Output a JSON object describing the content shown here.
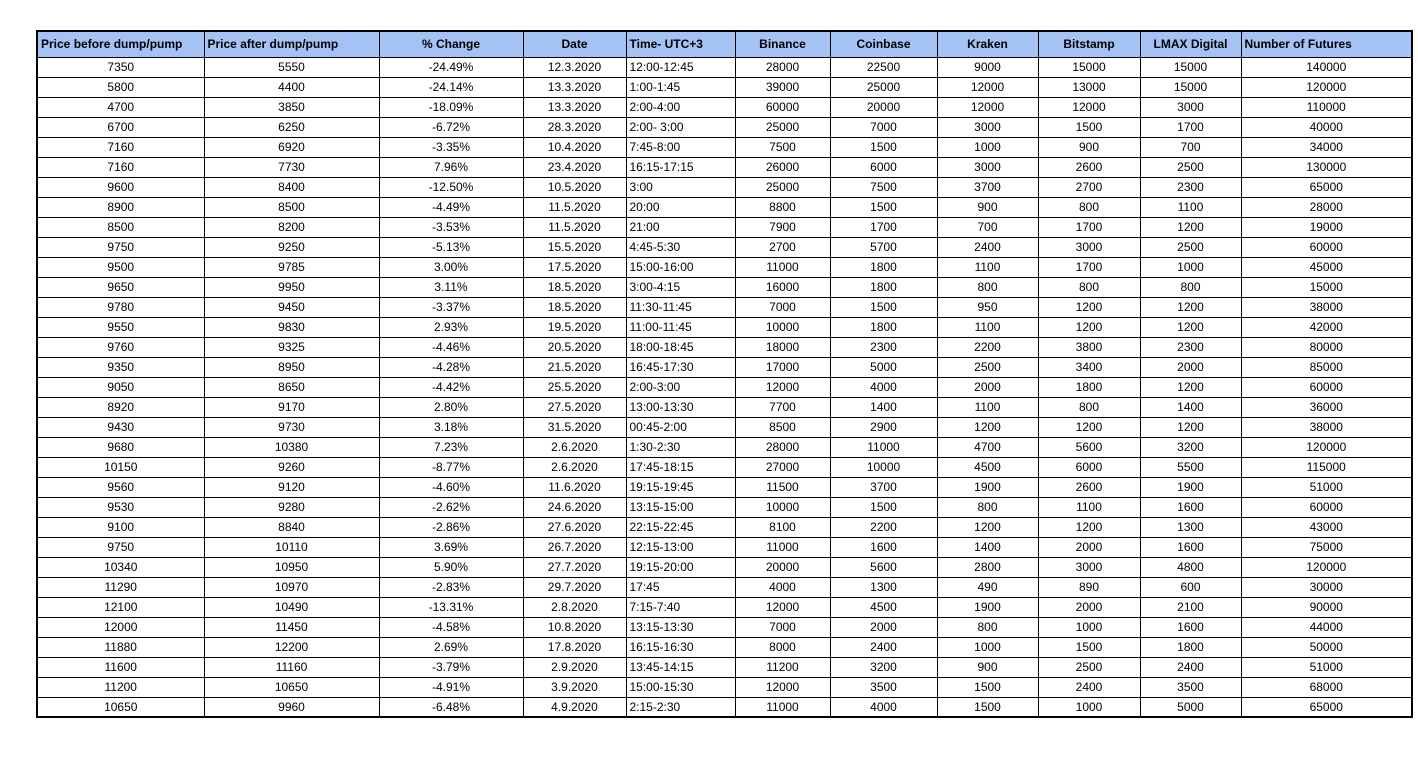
{
  "colors": {
    "header_bg": "#a4c2f4",
    "border": "#000000",
    "text": "#000000",
    "background": "#ffffff"
  },
  "table": {
    "headers": [
      "Price before dump/pump",
      "Price after dump/pump",
      "% Change",
      "Date",
      "Time- UTC+3",
      "Binance",
      "Coinbase",
      "Kraken",
      "Bitstamp",
      "LMAX Digital",
      "Number of Futures"
    ],
    "rows": [
      [
        "7350",
        "5550",
        "-24.49%",
        "12.3.2020",
        "12:00-12:45",
        "28000",
        "22500",
        "9000",
        "15000",
        "15000",
        "140000"
      ],
      [
        "5800",
        "4400",
        "-24.14%",
        "13.3.2020",
        "1:00-1:45",
        "39000",
        "25000",
        "12000",
        "13000",
        "15000",
        "120000"
      ],
      [
        "4700",
        "3850",
        "-18.09%",
        "13.3.2020",
        "2:00-4:00",
        "60000",
        "20000",
        "12000",
        "12000",
        "3000",
        "110000"
      ],
      [
        "6700",
        "6250",
        "-6.72%",
        "28.3.2020",
        "2:00- 3:00",
        "25000",
        "7000",
        "3000",
        "1500",
        "1700",
        "40000"
      ],
      [
        "7160",
        "6920",
        "-3.35%",
        "10.4.2020",
        "7:45-8:00",
        "7500",
        "1500",
        "1000",
        "900",
        "700",
        "34000"
      ],
      [
        "7160",
        "7730",
        "7.96%",
        "23.4.2020",
        "16:15-17:15",
        "26000",
        "6000",
        "3000",
        "2600",
        "2500",
        "130000"
      ],
      [
        "9600",
        "8400",
        "-12.50%",
        "10.5.2020",
        "3:00",
        "25000",
        "7500",
        "3700",
        "2700",
        "2300",
        "65000"
      ],
      [
        "8900",
        "8500",
        "-4.49%",
        "11.5.2020",
        "20:00",
        "8800",
        "1500",
        "900",
        "800",
        "1100",
        "28000"
      ],
      [
        "8500",
        "8200",
        "-3.53%",
        "11.5.2020",
        "21:00",
        "7900",
        "1700",
        "700",
        "1700",
        "1200",
        "19000"
      ],
      [
        "9750",
        "9250",
        "-5.13%",
        "15.5.2020",
        "4:45-5:30",
        "2700",
        "5700",
        "2400",
        "3000",
        "2500",
        "60000"
      ],
      [
        "9500",
        "9785",
        "3.00%",
        "17.5.2020",
        "15:00-16:00",
        "11000",
        "1800",
        "1100",
        "1700",
        "1000",
        "45000"
      ],
      [
        "9650",
        "9950",
        "3.11%",
        "18.5.2020",
        "3:00-4:15",
        "16000",
        "1800",
        "800",
        "800",
        "800",
        "15000"
      ],
      [
        "9780",
        "9450",
        "-3.37%",
        "18.5.2020",
        "11:30-11:45",
        "7000",
        "1500",
        "950",
        "1200",
        "1200",
        "38000"
      ],
      [
        "9550",
        "9830",
        "2.93%",
        "19.5.2020",
        "11:00-11:45",
        "10000",
        "1800",
        "1100",
        "1200",
        "1200",
        "42000"
      ],
      [
        "9760",
        "9325",
        "-4.46%",
        "20.5.2020",
        "18:00-18:45",
        "18000",
        "2300",
        "2200",
        "3800",
        "2300",
        "80000"
      ],
      [
        "9350",
        "8950",
        "-4.28%",
        "21.5.2020",
        "16:45-17:30",
        "17000",
        "5000",
        "2500",
        "3400",
        "2000",
        "85000"
      ],
      [
        "9050",
        "8650",
        "-4.42%",
        "25.5.2020",
        "2:00-3:00",
        "12000",
        "4000",
        "2000",
        "1800",
        "1200",
        "60000"
      ],
      [
        "8920",
        "9170",
        "2.80%",
        "27.5.2020",
        "13:00-13:30",
        "7700",
        "1400",
        "1100",
        "800",
        "1400",
        "36000"
      ],
      [
        "9430",
        "9730",
        "3.18%",
        "31.5.2020",
        "00:45-2:00",
        "8500",
        "2900",
        "1200",
        "1200",
        "1200",
        "38000"
      ],
      [
        "9680",
        "10380",
        "7.23%",
        "2.6.2020",
        "1:30-2:30",
        "28000",
        "11000",
        "4700",
        "5600",
        "3200",
        "120000"
      ],
      [
        "10150",
        "9260",
        "-8.77%",
        "2.6.2020",
        "17:45-18:15",
        "27000",
        "10000",
        "4500",
        "6000",
        "5500",
        "115000"
      ],
      [
        "9560",
        "9120",
        "-4.60%",
        "11.6.2020",
        "19:15-19:45",
        "11500",
        "3700",
        "1900",
        "2600",
        "1900",
        "51000"
      ],
      [
        "9530",
        "9280",
        "-2.62%",
        "24.6.2020",
        "13:15-15:00",
        "10000",
        "1500",
        "800",
        "1100",
        "1600",
        "60000"
      ],
      [
        "9100",
        "8840",
        "-2.86%",
        "27.6.2020",
        "22:15-22:45",
        "8100",
        "2200",
        "1200",
        "1200",
        "1300",
        "43000"
      ],
      [
        "9750",
        "10110",
        "3.69%",
        "26.7.2020",
        "12:15-13:00",
        "11000",
        "1600",
        "1400",
        "2000",
        "1600",
        "75000"
      ],
      [
        "10340",
        "10950",
        "5.90%",
        "27.7.2020",
        "19:15-20:00",
        "20000",
        "5600",
        "2800",
        "3000",
        "4800",
        "120000"
      ],
      [
        "11290",
        "10970",
        "-2.83%",
        "29.7.2020",
        "17:45",
        "4000",
        "1300",
        "490",
        "890",
        "600",
        "30000"
      ],
      [
        "12100",
        "10490",
        "-13.31%",
        "2.8.2020",
        "7:15-7:40",
        "12000",
        "4500",
        "1900",
        "2000",
        "2100",
        "90000"
      ],
      [
        "12000",
        "11450",
        "-4.58%",
        "10.8.2020",
        "13:15-13:30",
        "7000",
        "2000",
        "800",
        "1000",
        "1600",
        "44000"
      ],
      [
        "11880",
        "12200",
        "2.69%",
        "17.8.2020",
        "16:15-16:30",
        "8000",
        "2400",
        "1000",
        "1500",
        "1800",
        "50000"
      ],
      [
        "11600",
        "11160",
        "-3.79%",
        "2.9.2020",
        "13:45-14:15",
        "11200",
        "3200",
        "900",
        "2500",
        "2400",
        "51000"
      ],
      [
        "11200",
        "10650",
        "-4.91%",
        "3.9.2020",
        "15:00-15:30",
        "12000",
        "3500",
        "1500",
        "2400",
        "3500",
        "68000"
      ],
      [
        "10650",
        "9960",
        "-6.48%",
        "4.9.2020",
        "2:15-2:30",
        "11000",
        "4000",
        "1500",
        "1000",
        "5000",
        "65000"
      ]
    ]
  }
}
